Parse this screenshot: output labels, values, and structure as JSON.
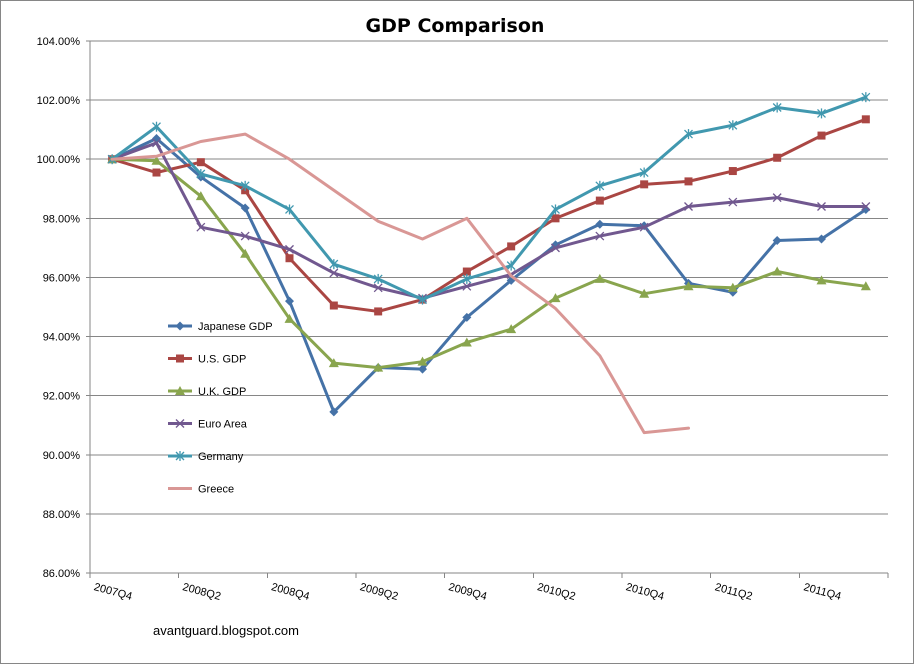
{
  "chart_data": {
    "type": "line",
    "title": "GDP Comparison",
    "xlabel": "",
    "ylabel": "",
    "ylim": [
      86.0,
      104.0
    ],
    "ytick_step": 2.0,
    "ytick_labels": [
      "86.00%",
      "88.00%",
      "90.00%",
      "92.00%",
      "94.00%",
      "96.00%",
      "98.00%",
      "100.00%",
      "102.00%",
      "104.00%"
    ],
    "x": [
      "2007Q4",
      "2008Q1",
      "2008Q2",
      "2008Q3",
      "2008Q4",
      "2009Q1",
      "2009Q2",
      "2009Q3",
      "2009Q4",
      "2010Q1",
      "2010Q2",
      "2010Q3",
      "2010Q4",
      "2011Q1",
      "2011Q2",
      "2011Q3",
      "2011Q4",
      "2012Q1"
    ],
    "x_tick_labels": [
      {
        "index": 0,
        "label": "2007Q4"
      },
      {
        "index": 2,
        "label": "2008Q2"
      },
      {
        "index": 4,
        "label": "2008Q4"
      },
      {
        "index": 6,
        "label": "2009Q2"
      },
      {
        "index": 8,
        "label": "2009Q4"
      },
      {
        "index": 10,
        "label": "2010Q2"
      },
      {
        "index": 12,
        "label": "2010Q4"
      },
      {
        "index": 14,
        "label": "2011Q2"
      },
      {
        "index": 16,
        "label": "2011Q4"
      }
    ],
    "grid": true,
    "legend_position": "lower-left",
    "series": [
      {
        "name": "Japanese GDP",
        "color": "#4572A7",
        "marker": "diamond",
        "values": [
          100.0,
          100.7,
          99.4,
          98.35,
          95.2,
          91.45,
          92.95,
          92.9,
          94.65,
          95.9,
          97.1,
          97.8,
          97.75,
          95.8,
          95.5,
          97.25,
          97.3,
          98.3
        ]
      },
      {
        "name": "U.S. GDP",
        "color": "#AA4643",
        "marker": "square",
        "values": [
          100.0,
          99.55,
          99.9,
          98.95,
          96.65,
          95.05,
          94.85,
          95.25,
          96.2,
          97.05,
          98.0,
          98.6,
          99.15,
          99.25,
          99.6,
          100.05,
          100.8,
          101.35
        ]
      },
      {
        "name": "U.K. GDP",
        "color": "#89A54E",
        "marker": "triangle",
        "values": [
          100.0,
          99.95,
          98.75,
          96.8,
          94.6,
          93.1,
          92.95,
          93.15,
          93.8,
          94.25,
          95.3,
          95.95,
          95.45,
          95.7,
          95.65,
          96.2,
          95.9,
          95.7
        ]
      },
      {
        "name": "Euro Area",
        "color": "#71588F",
        "marker": "x",
        "values": [
          100.0,
          100.55,
          97.7,
          97.4,
          96.95,
          96.15,
          95.65,
          95.3,
          95.7,
          96.1,
          97.0,
          97.4,
          97.7,
          98.4,
          98.55,
          98.7,
          98.4,
          98.4
        ]
      },
      {
        "name": "Germany",
        "color": "#4198AF",
        "marker": "star",
        "values": [
          100.0,
          101.1,
          99.5,
          99.1,
          98.3,
          96.45,
          95.95,
          95.25,
          95.95,
          96.4,
          98.3,
          99.1,
          99.55,
          100.85,
          101.15,
          101.75,
          101.55,
          102.1
        ]
      },
      {
        "name": "Greece",
        "color": "#D99795",
        "marker": "none",
        "values": [
          100.0,
          100.1,
          100.6,
          100.85,
          100.0,
          98.95,
          97.9,
          97.3,
          98.0,
          96.05,
          94.95,
          93.35,
          90.75,
          90.9,
          null,
          null,
          null,
          null
        ]
      }
    ]
  },
  "credit": "avantguard.blogspot.com"
}
